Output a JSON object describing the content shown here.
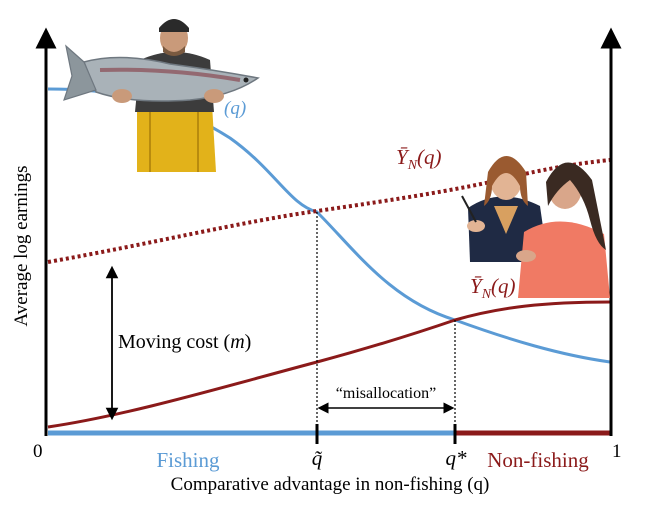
{
  "axes": {
    "y_label": "Average log earnings",
    "x_label": "Comparative advantage in non-fishing (q)",
    "x_min_label": "0",
    "x_max_label": "1",
    "q_tilde_label": "q̃",
    "q_star_label": "q*"
  },
  "regions": {
    "fishing": "Fishing",
    "non_fishing": "Non-fishing"
  },
  "curves": {
    "fishing_curve_label": "(q)",
    "non_fishing_dotted_label_main": "Ȳ",
    "non_fishing_dotted_label_sub": "N",
    "non_fishing_dotted_label_tail": "(q)",
    "non_fishing_solid_label_main": "Ȳ",
    "non_fishing_solid_label_sub": "N",
    "non_fishing_solid_label_tail": "(q)"
  },
  "annotations": {
    "moving_cost_prefix": "Moving cost (",
    "moving_cost_var": "m",
    "moving_cost_suffix": ")",
    "misallocation": "“misallocation”"
  },
  "colors": {
    "fishing": "#5B9BD5",
    "non_fishing": "#8B1A1A",
    "axis": "#000000"
  },
  "photos": {
    "fisherman": "fisherman-holding-salmon-photo",
    "office_workers": "two-office-workers-photo"
  }
}
